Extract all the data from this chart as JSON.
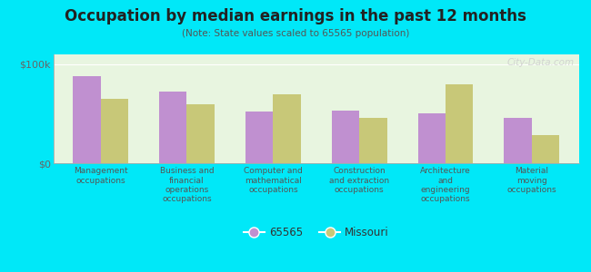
{
  "title": "Occupation by median earnings in the past 12 months",
  "subtitle": "(Note: State values scaled to 65565 population)",
  "categories": [
    "Management\noccupations",
    "Business and\nfinancial\noperations\noccupations",
    "Computer and\nmathematical\noccupations",
    "Construction\nand extraction\noccupations",
    "Architecture\nand\nengineering\noccupations",
    "Material\nmoving\noccupations"
  ],
  "values_65565": [
    88000,
    72000,
    52000,
    53000,
    50000,
    46000
  ],
  "values_missouri": [
    65000,
    60000,
    70000,
    46000,
    80000,
    28000
  ],
  "color_65565": "#c090d0",
  "color_missouri": "#c8c878",
  "background_outer": "#00e8f8",
  "background_inner_top": "#e8f5e0",
  "background_inner_bottom": "#d8eccc",
  "ylim": [
    0,
    110000
  ],
  "yticks": [
    0,
    100000
  ],
  "ytick_labels": [
    "$0",
    "$100k"
  ],
  "legend_label_1": "65565",
  "legend_label_2": "Missouri",
  "watermark": "City-Data.com"
}
